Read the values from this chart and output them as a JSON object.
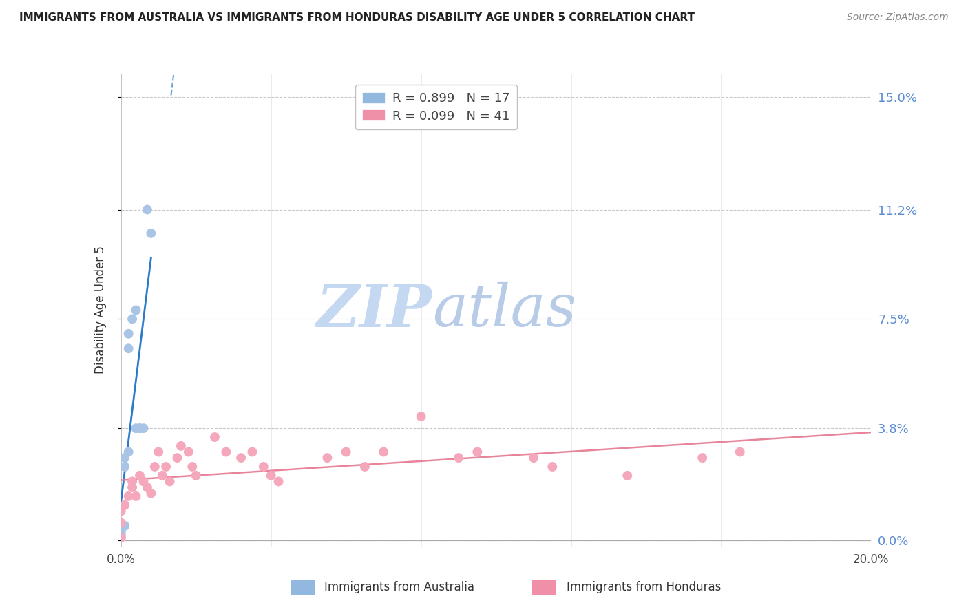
{
  "title": "IMMIGRANTS FROM AUSTRALIA VS IMMIGRANTS FROM HONDURAS DISABILITY AGE UNDER 5 CORRELATION CHART",
  "source": "Source: ZipAtlas.com",
  "ylabel": "Disability Age Under 5",
  "ytick_labels": [
    "0.0%",
    "3.8%",
    "7.5%",
    "11.2%",
    "15.0%"
  ],
  "ytick_values": [
    0.0,
    0.038,
    0.075,
    0.112,
    0.15
  ],
  "xlim": [
    0.0,
    0.2
  ],
  "ylim": [
    -0.002,
    0.158
  ],
  "australia_R": 0.899,
  "australia_N": 17,
  "honduras_R": 0.099,
  "honduras_N": 41,
  "australia_color": "#aac4e5",
  "honduras_color": "#f5a8bc",
  "australia_line_color": "#2b7bca",
  "honduras_line_color": "#e8849a",
  "grid_color": "#c8c8c8",
  "legend_border_color": "#c0c0c0",
  "aus_legend_color": "#93b8e0",
  "hon_legend_color": "#f090a8",
  "australia_x": [
    0.0,
    0.0,
    0.0,
    0.001,
    0.001,
    0.001,
    0.002,
    0.002,
    0.002,
    0.003,
    0.004,
    0.004,
    0.005,
    0.005,
    0.006,
    0.007,
    0.008
  ],
  "australia_y": [
    0.001,
    0.002,
    0.003,
    0.005,
    0.025,
    0.028,
    0.03,
    0.065,
    0.07,
    0.075,
    0.078,
    0.038,
    0.038,
    0.038,
    0.038,
    0.112,
    0.104
  ],
  "honduras_x": [
    0.0,
    0.0,
    0.0,
    0.001,
    0.002,
    0.003,
    0.003,
    0.004,
    0.005,
    0.006,
    0.007,
    0.008,
    0.009,
    0.01,
    0.011,
    0.012,
    0.013,
    0.015,
    0.016,
    0.018,
    0.019,
    0.02,
    0.025,
    0.028,
    0.032,
    0.035,
    0.038,
    0.04,
    0.042,
    0.055,
    0.06,
    0.065,
    0.07,
    0.08,
    0.09,
    0.095,
    0.11,
    0.115,
    0.135,
    0.155,
    0.165
  ],
  "honduras_y": [
    0.001,
    0.006,
    0.01,
    0.012,
    0.015,
    0.018,
    0.02,
    0.015,
    0.022,
    0.02,
    0.018,
    0.016,
    0.025,
    0.03,
    0.022,
    0.025,
    0.02,
    0.028,
    0.032,
    0.03,
    0.025,
    0.022,
    0.035,
    0.03,
    0.028,
    0.03,
    0.025,
    0.022,
    0.02,
    0.028,
    0.03,
    0.025,
    0.03,
    0.042,
    0.028,
    0.03,
    0.028,
    0.025,
    0.022,
    0.028,
    0.03
  ],
  "watermark_zip_color": "#c8d8f0",
  "watermark_atlas_color": "#c0d0e8"
}
